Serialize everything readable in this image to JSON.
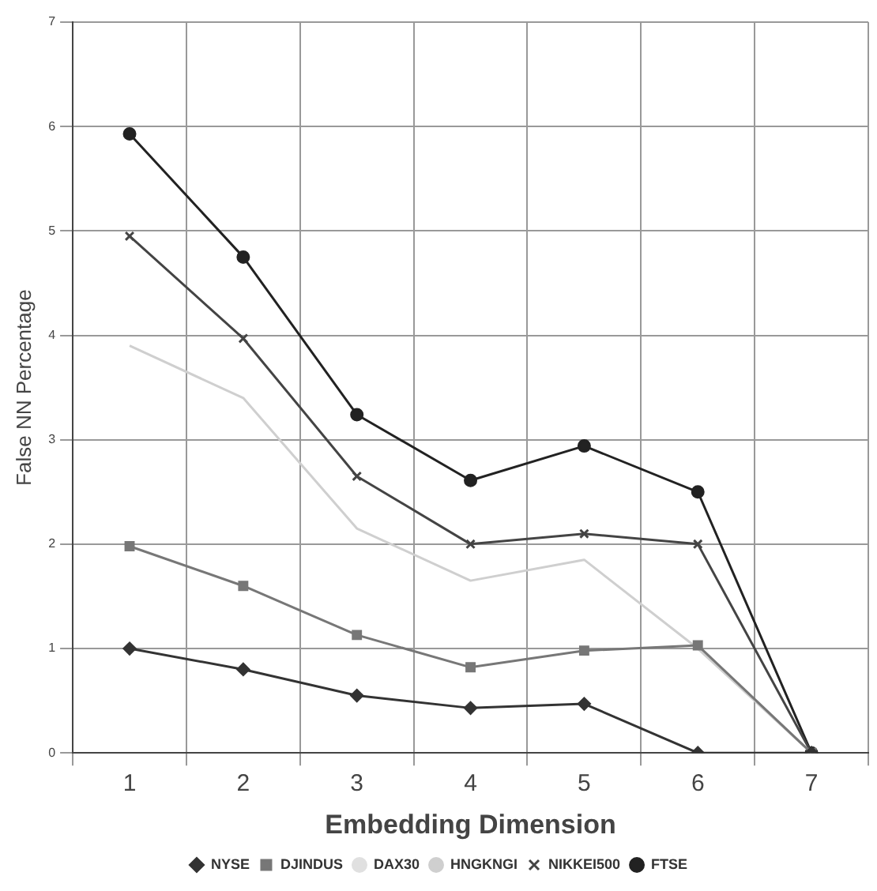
{
  "chart_data": {
    "type": "line",
    "xlabel": "Embedding Dimension",
    "ylabel": "False NN Percentage",
    "categories": [
      "1",
      "2",
      "3",
      "4",
      "5",
      "6",
      "7"
    ],
    "ylim": [
      0,
      7
    ],
    "yticks": [
      0,
      1,
      2,
      3,
      4,
      5,
      6,
      7
    ],
    "grid": true,
    "legend": "bottom",
    "series": [
      {
        "name": "NYSE",
        "color": "#333333",
        "marker": "diamond",
        "values": [
          1.0,
          0.8,
          0.55,
          0.43,
          0.47,
          0,
          0
        ]
      },
      {
        "name": "DJINDUS",
        "color": "#777777",
        "marker": "square",
        "values": [
          1.98,
          1.6,
          1.13,
          0.82,
          0.98,
          1.03,
          0
        ]
      },
      {
        "name": "DAX30",
        "color": "#e0e0e0",
        "marker": "none",
        "values": [
          null,
          null,
          null,
          null,
          null,
          null,
          null
        ]
      },
      {
        "name": "HNGKNGI",
        "color": "#cfcfcf",
        "marker": "none",
        "values": [
          3.9,
          3.4,
          2.15,
          1.65,
          1.85,
          1.0,
          0
        ]
      },
      {
        "name": "NIKKEI500",
        "color": "#444444",
        "marker": "cross",
        "values": [
          4.95,
          3.97,
          2.65,
          2.0,
          2.1,
          2.0,
          0
        ]
      },
      {
        "name": "FTSE",
        "color": "#222222",
        "marker": "circle",
        "values": [
          5.93,
          4.75,
          3.24,
          2.61,
          2.94,
          2.5,
          0
        ]
      }
    ]
  }
}
